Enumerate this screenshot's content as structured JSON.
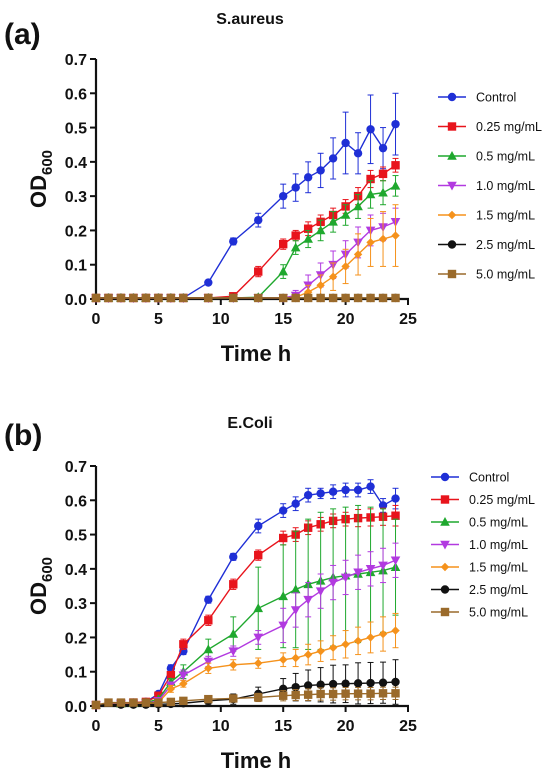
{
  "chart_data": [
    {
      "type": "line",
      "panel_label": "(a)",
      "title": "S.aureus",
      "xlabel": "Time h",
      "ylabel": "OD",
      "ylabel_sub": "600",
      "xlim": [
        0,
        25
      ],
      "ylim": [
        0,
        0.7
      ],
      "xticks": [
        "0",
        "5",
        "10",
        "15",
        "20",
        "25"
      ],
      "yticks": [
        "0.0",
        "0.1",
        "0.2",
        "0.3",
        "0.4",
        "0.5",
        "0.6",
        "0.7"
      ],
      "grid": false,
      "legend_position": "right",
      "series": [
        {
          "name": "Control",
          "color": "#1f2fd6",
          "marker": "circle",
          "x": [
            0,
            1,
            2,
            3,
            4,
            5,
            6,
            7,
            9,
            11,
            13,
            15,
            16,
            17,
            18,
            19,
            20,
            21,
            22,
            23,
            24
          ],
          "y": [
            0.003,
            0.003,
            0.003,
            0.003,
            0.003,
            0.003,
            0.003,
            0.003,
            0.048,
            0.168,
            0.23,
            0.3,
            0.325,
            0.355,
            0.375,
            0.41,
            0.455,
            0.425,
            0.495,
            0.44,
            0.51
          ],
          "err": [
            0,
            0,
            0,
            0,
            0,
            0,
            0,
            0,
            0.005,
            0.01,
            0.02,
            0.035,
            0.04,
            0.045,
            0.05,
            0.06,
            0.09,
            0.06,
            0.1,
            0.06,
            0.09
          ]
        },
        {
          "name": "0.25 mg/mL",
          "color": "#e8141c",
          "marker": "square",
          "x": [
            0,
            1,
            2,
            3,
            4,
            5,
            6,
            7,
            9,
            11,
            13,
            15,
            16,
            17,
            18,
            19,
            20,
            21,
            22,
            23,
            24
          ],
          "y": [
            0.003,
            0.003,
            0.003,
            0.003,
            0.003,
            0.003,
            0.003,
            0.003,
            0.003,
            0.008,
            0.08,
            0.16,
            0.185,
            0.205,
            0.225,
            0.245,
            0.27,
            0.3,
            0.35,
            0.365,
            0.39
          ],
          "err": [
            0,
            0,
            0,
            0,
            0,
            0,
            0,
            0,
            0,
            0.003,
            0.015,
            0.015,
            0.015,
            0.02,
            0.02,
            0.02,
            0.02,
            0.025,
            0.025,
            0.02,
            0.02
          ]
        },
        {
          "name": "0.5 mg/mL",
          "color": "#1fa82e",
          "marker": "triangle-up",
          "x": [
            0,
            1,
            2,
            3,
            4,
            5,
            6,
            7,
            9,
            11,
            13,
            15,
            16,
            17,
            18,
            19,
            20,
            21,
            22,
            23,
            24
          ],
          "y": [
            0.003,
            0.003,
            0.003,
            0.003,
            0.003,
            0.003,
            0.003,
            0.003,
            0.003,
            0.003,
            0.005,
            0.08,
            0.15,
            0.175,
            0.2,
            0.225,
            0.245,
            0.27,
            0.305,
            0.31,
            0.33
          ],
          "err": [
            0,
            0,
            0,
            0,
            0,
            0,
            0,
            0,
            0,
            0,
            0.003,
            0.02,
            0.02,
            0.025,
            0.03,
            0.03,
            0.03,
            0.035,
            0.04,
            0.035,
            0.03
          ]
        },
        {
          "name": "1.0 mg/mL",
          "color": "#b23ae0",
          "marker": "triangle-down",
          "x": [
            0,
            1,
            2,
            3,
            4,
            5,
            6,
            7,
            9,
            11,
            13,
            15,
            16,
            17,
            18,
            19,
            20,
            21,
            22,
            23,
            24
          ],
          "y": [
            0.003,
            0.003,
            0.003,
            0.003,
            0.003,
            0.003,
            0.003,
            0.003,
            0.003,
            0.003,
            0.003,
            0.003,
            0.01,
            0.04,
            0.07,
            0.1,
            0.13,
            0.165,
            0.2,
            0.21,
            0.225
          ],
          "err": [
            0,
            0,
            0,
            0,
            0,
            0,
            0,
            0,
            0,
            0,
            0,
            0.003,
            0.015,
            0.03,
            0.035,
            0.04,
            0.04,
            0.045,
            0.045,
            0.04,
            0.04
          ]
        },
        {
          "name": "1.5 mg/mL",
          "color": "#f5921c",
          "marker": "diamond",
          "x": [
            0,
            1,
            2,
            3,
            4,
            5,
            6,
            7,
            9,
            11,
            13,
            15,
            16,
            17,
            18,
            19,
            20,
            21,
            22,
            23,
            24
          ],
          "y": [
            0.003,
            0.003,
            0.003,
            0.003,
            0.003,
            0.003,
            0.003,
            0.003,
            0.003,
            0.003,
            0.003,
            0.003,
            0.005,
            0.02,
            0.04,
            0.065,
            0.095,
            0.13,
            0.165,
            0.175,
            0.185
          ],
          "err": [
            0,
            0,
            0,
            0,
            0,
            0,
            0,
            0,
            0,
            0,
            0,
            0,
            0.005,
            0.02,
            0.03,
            0.04,
            0.05,
            0.06,
            0.07,
            0.08,
            0.09
          ]
        },
        {
          "name": "2.5 mg/mL",
          "color": "#111111",
          "marker": "circle",
          "x": [
            0,
            1,
            2,
            3,
            4,
            5,
            6,
            7,
            9,
            11,
            13,
            15,
            16,
            17,
            18,
            19,
            20,
            21,
            22,
            23,
            24
          ],
          "y": [
            0.003,
            0.003,
            0.003,
            0.003,
            0.003,
            0.003,
            0.003,
            0.003,
            0.003,
            0.003,
            0.003,
            0.003,
            0.003,
            0.003,
            0.003,
            0.003,
            0.003,
            0.003,
            0.003,
            0.003,
            0.003
          ],
          "err": [
            0,
            0,
            0,
            0,
            0,
            0,
            0,
            0,
            0,
            0,
            0,
            0,
            0.002,
            0.002,
            0.002,
            0.002,
            0.003,
            0.003,
            0.003,
            0.003,
            0.003
          ]
        },
        {
          "name": "5.0 mg/mL",
          "color": "#9a6a2b",
          "marker": "square",
          "x": [
            0,
            1,
            2,
            3,
            4,
            5,
            6,
            7,
            9,
            11,
            13,
            15,
            16,
            17,
            18,
            19,
            20,
            21,
            22,
            23,
            24
          ],
          "y": [
            0.003,
            0.003,
            0.003,
            0.003,
            0.003,
            0.003,
            0.003,
            0.003,
            0.003,
            0.003,
            0.003,
            0.003,
            0.003,
            0.003,
            0.003,
            0.003,
            0.003,
            0.003,
            0.003,
            0.003,
            0.003
          ],
          "err": [
            0,
            0,
            0,
            0,
            0,
            0,
            0,
            0,
            0,
            0,
            0,
            0,
            0.002,
            0.002,
            0.002,
            0.002,
            0.003,
            0.003,
            0.003,
            0.003,
            0.003
          ]
        }
      ]
    },
    {
      "type": "line",
      "panel_label": "(b)",
      "title": "E.Coli",
      "xlabel": "Time h",
      "ylabel": "OD",
      "ylabel_sub": "600",
      "xlim": [
        0,
        25
      ],
      "ylim": [
        0,
        0.7
      ],
      "xticks": [
        "0",
        "5",
        "10",
        "15",
        "20",
        "25"
      ],
      "yticks": [
        "0.0",
        "0.1",
        "0.2",
        "0.3",
        "0.4",
        "0.5",
        "0.6",
        "0.7"
      ],
      "grid": false,
      "legend_position": "right",
      "series": [
        {
          "name": "Control",
          "color": "#1f2fd6",
          "marker": "circle",
          "x": [
            0,
            2,
            3,
            4,
            5,
            6,
            7,
            9,
            11,
            13,
            15,
            16,
            17,
            18,
            19,
            20,
            21,
            22,
            23,
            24
          ],
          "y": [
            0.003,
            0.008,
            0.01,
            0.012,
            0.035,
            0.11,
            0.16,
            0.31,
            0.435,
            0.525,
            0.57,
            0.59,
            0.615,
            0.62,
            0.625,
            0.63,
            0.63,
            0.64,
            0.585,
            0.605
          ],
          "err": [
            0,
            0.003,
            0.003,
            0.003,
            0.005,
            0.01,
            0.01,
            0.01,
            0.01,
            0.02,
            0.02,
            0.02,
            0.02,
            0.015,
            0.02,
            0.02,
            0.02,
            0.02,
            0.02,
            0.03
          ]
        },
        {
          "name": "0.25 mg/mL",
          "color": "#e8141c",
          "marker": "square",
          "x": [
            0,
            2,
            3,
            4,
            5,
            6,
            7,
            9,
            11,
            13,
            15,
            16,
            17,
            18,
            19,
            20,
            21,
            22,
            23,
            24
          ],
          "y": [
            0.003,
            0.008,
            0.01,
            0.012,
            0.03,
            0.09,
            0.18,
            0.25,
            0.355,
            0.44,
            0.49,
            0.5,
            0.52,
            0.53,
            0.54,
            0.545,
            0.548,
            0.55,
            0.552,
            0.555
          ],
          "err": [
            0,
            0.003,
            0.003,
            0.003,
            0.005,
            0.01,
            0.015,
            0.015,
            0.015,
            0.015,
            0.02,
            0.02,
            0.02,
            0.02,
            0.02,
            0.02,
            0.025,
            0.025,
            0.025,
            0.03
          ]
        },
        {
          "name": "0.5 mg/mL",
          "color": "#1fa82e",
          "marker": "triangle-up",
          "x": [
            0,
            2,
            3,
            4,
            5,
            6,
            7,
            9,
            11,
            13,
            15,
            16,
            17,
            18,
            19,
            20,
            21,
            22,
            23,
            24
          ],
          "y": [
            0.003,
            0.007,
            0.008,
            0.01,
            0.02,
            0.07,
            0.1,
            0.165,
            0.21,
            0.285,
            0.32,
            0.34,
            0.355,
            0.365,
            0.375,
            0.38,
            0.385,
            0.39,
            0.395,
            0.405
          ],
          "err": [
            0,
            0.003,
            0.003,
            0.003,
            0.005,
            0.01,
            0.02,
            0.03,
            0.05,
            0.12,
            0.15,
            0.17,
            0.19,
            0.2,
            0.2,
            0.2,
            0.2,
            0.19,
            0.18,
            0.14
          ]
        },
        {
          "name": "1.0 mg/mL",
          "color": "#b23ae0",
          "marker": "triangle-down",
          "x": [
            0,
            2,
            3,
            4,
            5,
            6,
            7,
            9,
            11,
            13,
            15,
            16,
            17,
            18,
            19,
            20,
            21,
            22,
            23,
            24
          ],
          "y": [
            0.003,
            0.006,
            0.007,
            0.008,
            0.015,
            0.06,
            0.09,
            0.13,
            0.16,
            0.2,
            0.235,
            0.28,
            0.31,
            0.335,
            0.36,
            0.375,
            0.39,
            0.4,
            0.41,
            0.425
          ],
          "err": [
            0,
            0.003,
            0.003,
            0.003,
            0.005,
            0.01,
            0.015,
            0.015,
            0.015,
            0.02,
            0.05,
            0.05,
            0.05,
            0.05,
            0.05,
            0.05,
            0.05,
            0.05,
            0.05,
            0.05
          ]
        },
        {
          "name": "1.5 mg/mL",
          "color": "#f5921c",
          "marker": "diamond",
          "x": [
            0,
            2,
            3,
            4,
            5,
            6,
            7,
            9,
            11,
            13,
            15,
            16,
            17,
            18,
            19,
            20,
            21,
            22,
            23,
            24
          ],
          "y": [
            0.003,
            0.005,
            0.006,
            0.006,
            0.01,
            0.05,
            0.065,
            0.11,
            0.12,
            0.125,
            0.135,
            0.14,
            0.15,
            0.16,
            0.17,
            0.18,
            0.19,
            0.2,
            0.21,
            0.22
          ],
          "err": [
            0,
            0.003,
            0.003,
            0.003,
            0.005,
            0.01,
            0.01,
            0.015,
            0.015,
            0.015,
            0.02,
            0.025,
            0.03,
            0.03,
            0.035,
            0.04,
            0.04,
            0.045,
            0.05,
            0.05
          ]
        },
        {
          "name": "2.5 mg/mL",
          "color": "#111111",
          "marker": "circle",
          "x": [
            0,
            2,
            3,
            4,
            5,
            6,
            7,
            9,
            11,
            13,
            15,
            16,
            17,
            18,
            19,
            20,
            21,
            22,
            23,
            24
          ],
          "y": [
            0.003,
            0.004,
            0.004,
            0.004,
            0.005,
            0.006,
            0.008,
            0.015,
            0.02,
            0.035,
            0.05,
            0.055,
            0.06,
            0.062,
            0.064,
            0.065,
            0.066,
            0.067,
            0.068,
            0.07
          ],
          "err": [
            0,
            0.002,
            0.002,
            0.002,
            0.003,
            0.003,
            0.004,
            0.01,
            0.015,
            0.02,
            0.03,
            0.04,
            0.045,
            0.05,
            0.055,
            0.055,
            0.06,
            0.06,
            0.06,
            0.065
          ]
        },
        {
          "name": "5.0 mg/mL",
          "color": "#9a6a2b",
          "marker": "square",
          "x": [
            0,
            1,
            2,
            3,
            4,
            5,
            6,
            7,
            9,
            11,
            13,
            15,
            16,
            17,
            18,
            19,
            20,
            21,
            22,
            23,
            24
          ],
          "y": [
            0.003,
            0.01,
            0.01,
            0.01,
            0.01,
            0.01,
            0.012,
            0.015,
            0.02,
            0.022,
            0.025,
            0.03,
            0.032,
            0.033,
            0.035,
            0.035,
            0.036,
            0.036,
            0.036,
            0.037,
            0.037
          ],
          "err": [
            0,
            0.003,
            0.003,
            0.003,
            0.003,
            0.003,
            0.004,
            0.005,
            0.008,
            0.01,
            0.012,
            0.015,
            0.016,
            0.017,
            0.018,
            0.018,
            0.018,
            0.018,
            0.018,
            0.018,
            0.018
          ]
        }
      ]
    }
  ]
}
